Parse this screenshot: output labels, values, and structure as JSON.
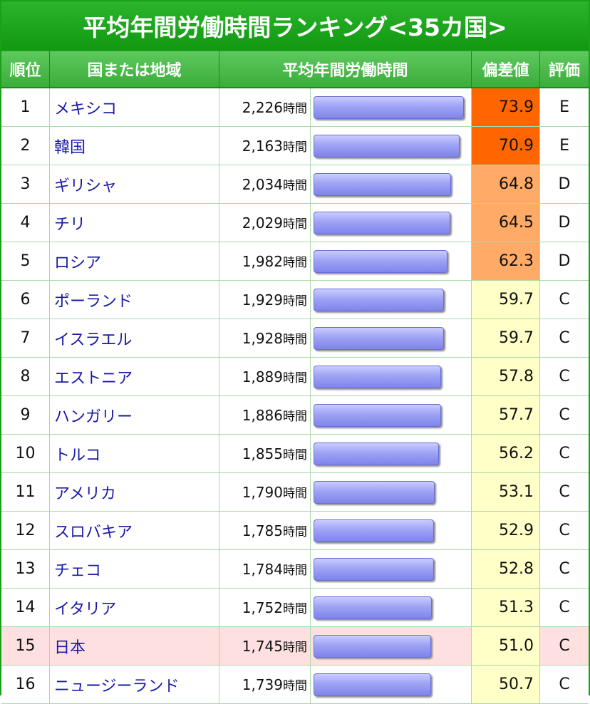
{
  "title": "平均年間労働時間ランキング<35カ国>",
  "headers": {
    "rank": "順位",
    "name": "国または地域",
    "hours": "平均年間労働時間",
    "deviation": "偏差値",
    "grade": "評価"
  },
  "hours_unit": "時間",
  "bar_max_hours": 2300,
  "colors": {
    "grade_E": "#ff6600",
    "grade_D": "#ffaa66",
    "grade_C": "#ffffc8",
    "highlight_row": "#ffe0e0",
    "link_text": "#1a1aa8",
    "header_green": "#1aa01a"
  },
  "rows": [
    {
      "rank": "1",
      "name": "メキシコ",
      "hours": "2,226",
      "hours_value": 2226,
      "deviation": "73.9",
      "grade": "E"
    },
    {
      "rank": "2",
      "name": "韓国",
      "hours": "2,163",
      "hours_value": 2163,
      "deviation": "70.9",
      "grade": "E"
    },
    {
      "rank": "3",
      "name": "ギリシャ",
      "hours": "2,034",
      "hours_value": 2034,
      "deviation": "64.8",
      "grade": "D"
    },
    {
      "rank": "4",
      "name": "チリ",
      "hours": "2,029",
      "hours_value": 2029,
      "deviation": "64.5",
      "grade": "D"
    },
    {
      "rank": "5",
      "name": "ロシア",
      "hours": "1,982",
      "hours_value": 1982,
      "deviation": "62.3",
      "grade": "D"
    },
    {
      "rank": "6",
      "name": "ポーランド",
      "hours": "1,929",
      "hours_value": 1929,
      "deviation": "59.7",
      "grade": "C"
    },
    {
      "rank": "7",
      "name": "イスラエル",
      "hours": "1,928",
      "hours_value": 1928,
      "deviation": "59.7",
      "grade": "C"
    },
    {
      "rank": "8",
      "name": "エストニア",
      "hours": "1,889",
      "hours_value": 1889,
      "deviation": "57.8",
      "grade": "C"
    },
    {
      "rank": "9",
      "name": "ハンガリー",
      "hours": "1,886",
      "hours_value": 1886,
      "deviation": "57.7",
      "grade": "C"
    },
    {
      "rank": "10",
      "name": "トルコ",
      "hours": "1,855",
      "hours_value": 1855,
      "deviation": "56.2",
      "grade": "C"
    },
    {
      "rank": "11",
      "name": "アメリカ",
      "hours": "1,790",
      "hours_value": 1790,
      "deviation": "53.1",
      "grade": "C"
    },
    {
      "rank": "12",
      "name": "スロバキア",
      "hours": "1,785",
      "hours_value": 1785,
      "deviation": "52.9",
      "grade": "C"
    },
    {
      "rank": "13",
      "name": "チェコ",
      "hours": "1,784",
      "hours_value": 1784,
      "deviation": "52.8",
      "grade": "C"
    },
    {
      "rank": "14",
      "name": "イタリア",
      "hours": "1,752",
      "hours_value": 1752,
      "deviation": "51.3",
      "grade": "C"
    },
    {
      "rank": "15",
      "name": "日本",
      "hours": "1,745",
      "hours_value": 1745,
      "deviation": "51.0",
      "grade": "C",
      "highlight": true
    },
    {
      "rank": "16",
      "name": "ニュージーランド",
      "hours": "1,739",
      "hours_value": 1739,
      "deviation": "50.7",
      "grade": "C"
    }
  ]
}
